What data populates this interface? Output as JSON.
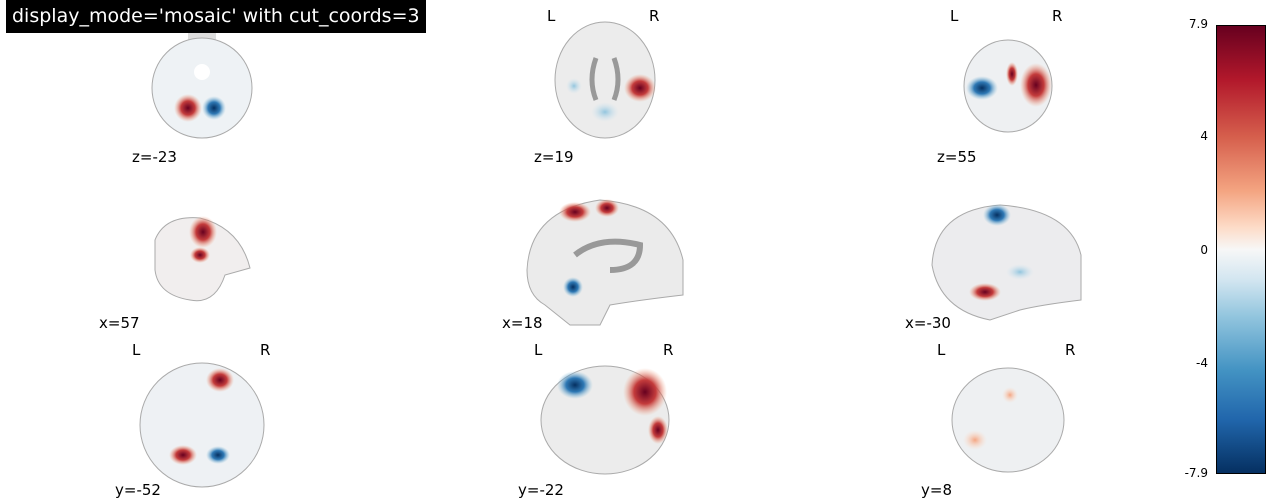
{
  "title": "display_mode='mosaic' with cut_coords=3",
  "orientation_labels": {
    "left": "L",
    "right": "R"
  },
  "cuts": {
    "axial": [
      "z=-23",
      "z=19",
      "z=55"
    ],
    "sagittal": [
      "x=57",
      "x=18",
      "x=-30"
    ],
    "coronal": [
      "y=-52",
      "y=-22",
      "y=8"
    ]
  },
  "colorbar": {
    "colormap": "RdBu_r",
    "range": [
      -7.9,
      7.9
    ],
    "ticks": [
      "7.9",
      "4",
      "0",
      "-4",
      "-7.9"
    ],
    "colors": {
      "max": "#67001f",
      "mid": "#f7f7f7",
      "min": "#053061"
    }
  }
}
